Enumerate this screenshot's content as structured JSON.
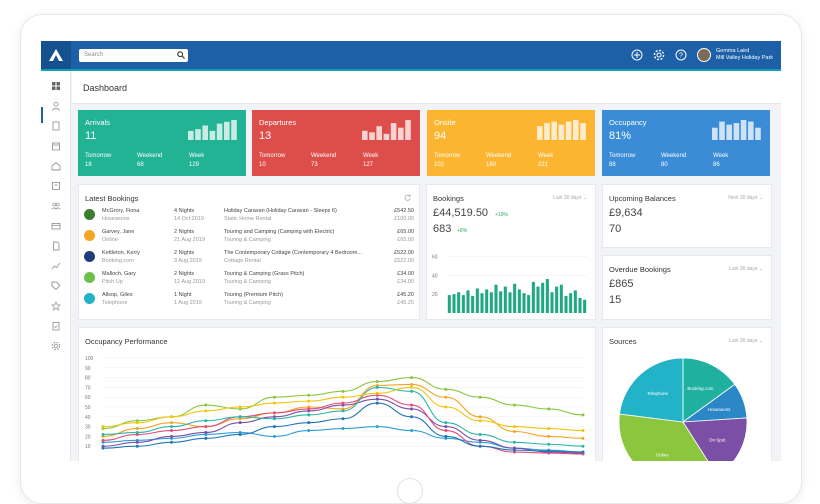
{
  "topbar": {
    "search_placeholder": "Search",
    "user_name": "Gemma Laird",
    "user_org": "Mill Valley Holiday Park"
  },
  "page_title": "Dashboard",
  "stats": [
    {
      "title": "Arrivals",
      "value": "11",
      "tomorrow_label": "Tomorrow",
      "tomorrow": "18",
      "weekend_label": "Weekend",
      "weekend": "68",
      "week_label": "Week",
      "week": "129",
      "color": "#21b394"
    },
    {
      "title": "Departures",
      "value": "13",
      "tomorrow_label": "Tomorrow",
      "tomorrow": "10",
      "weekend_label": "Weekend",
      "weekend": "73",
      "week_label": "Week",
      "week": "127",
      "color": "#dd4e4b"
    },
    {
      "title": "Onsite",
      "value": "94",
      "tomorrow_label": "Tomorrow",
      "tomorrow": "102",
      "weekend_label": "Weekend",
      "weekend": "160",
      "week_label": "Week",
      "week": "221",
      "color": "#fbb530"
    },
    {
      "title": "Occupancy",
      "value": "81%",
      "tomorrow_label": "Tomorrow",
      "tomorrow": "88",
      "weekend_label": "Weekend",
      "weekend": "80",
      "week_label": "Week",
      "week": "86",
      "color": "#3b8cd6"
    }
  ],
  "latest_bookings": {
    "title": "Latest Bookings",
    "rows": [
      {
        "name": "McGrory, Fiona",
        "source": "Hoseasons",
        "nights": "4 Nights",
        "date": "14 Oct 2019",
        "unit": "Holiday Caravan (Holiday Caravan - Sleeps 6)",
        "type": "Static Home Rental",
        "price": "£542.50",
        "paid": "£100.00",
        "icon_color": "#3a7d2c"
      },
      {
        "name": "Garvey, Jane",
        "source": "Online",
        "nights": "2 Nights",
        "date": "21 Aug 2019",
        "unit": "Touring and Camping (Camping with Electric)",
        "type": "Touring & Camping",
        "price": "£65.00",
        "paid": "£65.00",
        "icon_color": "#f4a623"
      },
      {
        "name": "Kettleton, Kerry",
        "source": "Booking.com",
        "nights": "2 Nights",
        "date": "9 Aug 2019",
        "unit": "The Contemporary Cottage (Contemporary 4 Bedroom...",
        "type": "Cottage Rental",
        "price": "£522.00",
        "paid": "£522.00",
        "icon_color": "#1f3d7a"
      },
      {
        "name": "Malloch, Gary",
        "source": "Pitch Up",
        "nights": "2 Nights",
        "date": "12 Aug 2019",
        "unit": "Touring & Camping (Grass Pitch)",
        "type": "Touring & Camping",
        "price": "£34.00",
        "paid": "£34.00",
        "icon_color": "#6cbf4b"
      },
      {
        "name": "Allsop, Giles",
        "source": "Telephone",
        "nights": "1 Night",
        "date": "1 Aug 2019",
        "unit": "Touring (Premium Pitch)",
        "type": "Touring & Camping",
        "price": "£45.20",
        "paid": "£45.20",
        "icon_color": "#22b3c9"
      }
    ]
  },
  "bookings": {
    "title": "Bookings",
    "period": "Last 30 days",
    "amount": "£44,519.50",
    "amount_change": "+19%",
    "count": "683",
    "count_change": "+8%",
    "y_ticks": [
      "60",
      "40",
      "20"
    ],
    "accent": "#1fa884"
  },
  "upcoming": {
    "title": "Upcoming Balances",
    "period": "Next 30 days",
    "amount": "£9,634",
    "count": "70"
  },
  "overdue": {
    "title": "Overdue Bookings",
    "period": "Last 30 days",
    "amount": "£865",
    "count": "15"
  },
  "occupancy": {
    "title": "Occupancy Performance",
    "y_ticks": [
      "100",
      "90",
      "80",
      "70",
      "60",
      "50",
      "40",
      "30",
      "20",
      "10"
    ]
  },
  "sources": {
    "title": "Sources",
    "period": "Last 30 days"
  },
  "chart_data": [
    {
      "type": "bar",
      "title": "Arrivals",
      "values": [
        5,
        6,
        8,
        5,
        9,
        10,
        11
      ]
    },
    {
      "type": "bar",
      "title": "Departures",
      "values": [
        6,
        5,
        9,
        4,
        11,
        8,
        13
      ]
    },
    {
      "type": "bar",
      "title": "Onsite",
      "values": [
        9,
        11,
        12,
        10,
        12,
        13,
        11
      ]
    },
    {
      "type": "bar",
      "title": "Occupancy",
      "values": [
        8,
        12,
        10,
        11,
        13,
        12,
        8
      ]
    },
    {
      "type": "bar",
      "title": "Bookings",
      "ylim": [
        0,
        70
      ],
      "values": [
        19,
        20,
        22,
        19,
        24,
        18,
        26,
        21,
        25,
        22,
        30,
        23,
        28,
        22,
        31,
        25,
        21,
        19,
        33,
        28,
        32,
        36,
        22,
        28,
        30,
        18,
        21,
        24,
        16,
        14
      ]
    },
    {
      "type": "line",
      "title": "Occupancy Performance",
      "ylim": [
        0,
        100
      ],
      "series": [
        {
          "color": "#f4a623",
          "values": [
            20,
            28,
            34,
            30,
            38,
            44,
            50,
            48,
            72,
            73,
            60,
            40,
            25,
            20,
            18
          ]
        },
        {
          "color": "#8cc63f",
          "values": [
            28,
            36,
            40,
            52,
            48,
            60,
            62,
            66,
            76,
            80,
            68,
            60,
            52,
            48,
            42
          ]
        },
        {
          "color": "#2c9fd9",
          "values": [
            14,
            16,
            18,
            22,
            24,
            20,
            26,
            28,
            30,
            26,
            18,
            14,
            8,
            6,
            4
          ]
        },
        {
          "color": "#7b4fa6",
          "values": [
            10,
            14,
            20,
            24,
            34,
            40,
            46,
            52,
            58,
            48,
            30,
            16,
            8,
            4,
            3
          ]
        },
        {
          "color": "#e44c7a",
          "values": [
            16,
            22,
            26,
            30,
            40,
            44,
            48,
            54,
            62,
            52,
            26,
            10,
            4,
            3,
            2
          ]
        },
        {
          "color": "#2bb5a5",
          "values": [
            22,
            24,
            30,
            36,
            40,
            38,
            42,
            46,
            70,
            66,
            34,
            22,
            14,
            12,
            10
          ]
        },
        {
          "color": "#1f77b4",
          "values": [
            8,
            10,
            14,
            18,
            22,
            30,
            34,
            38,
            54,
            40,
            20,
            10,
            6,
            5,
            4
          ]
        },
        {
          "color": "#f1c40f",
          "values": [
            30,
            34,
            40,
            46,
            50,
            54,
            56,
            60,
            64,
            70,
            50,
            36,
            30,
            28,
            26
          ]
        }
      ]
    },
    {
      "type": "pie",
      "title": "Sources",
      "categories": [
        "Booking.com",
        "Hoseasons",
        "On Spot",
        "Online",
        "Telephone"
      ],
      "values": [
        15,
        9,
        17,
        36,
        23
      ],
      "colors": [
        "#1fb0a0",
        "#2c87c7",
        "#7b4fa6",
        "#8cc63f",
        "#22b3c9"
      ]
    }
  ]
}
